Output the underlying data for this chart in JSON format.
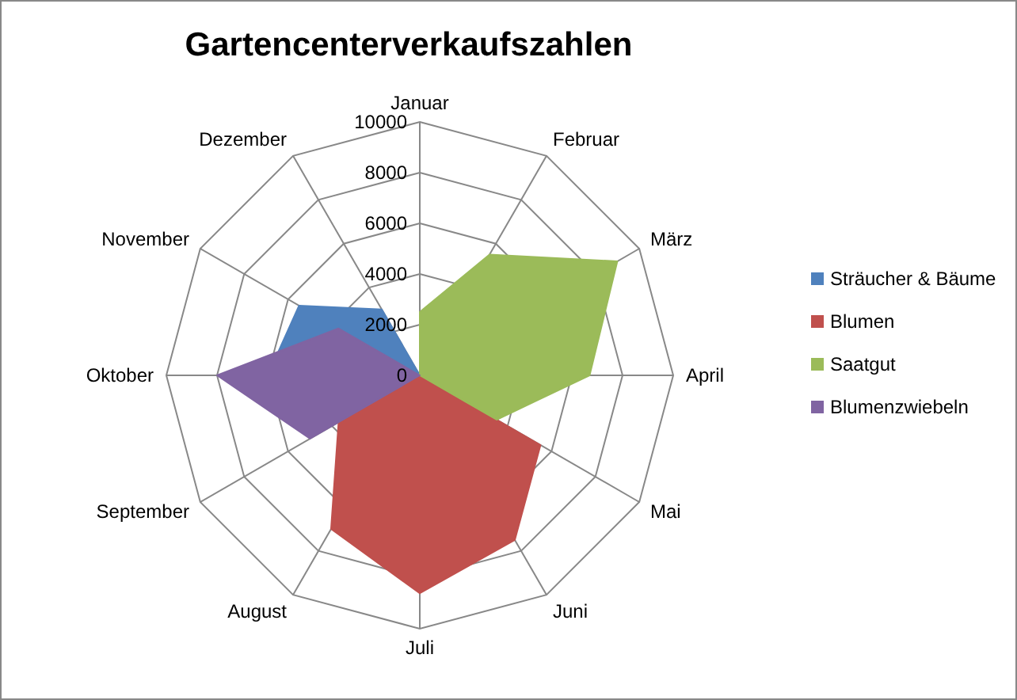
{
  "chart_data": {
    "type": "radar",
    "title": "Gartencenterverkaufszahlen",
    "categories": [
      "Januar",
      "Februar",
      "März",
      "April",
      "Mai",
      "Juni",
      "Juli",
      "August",
      "September",
      "Oktober",
      "November",
      "Dezember"
    ],
    "ylim": [
      0,
      10000
    ],
    "yticks": [
      0,
      2000,
      4000,
      6000,
      8000,
      10000
    ],
    "grid": true,
    "legend": "right",
    "series": [
      {
        "name": "Sträucher & Bäume",
        "color": "#4f81bd",
        "values": [
          0,
          0,
          0,
          0,
          0,
          0,
          0,
          0,
          0,
          6000,
          5500,
          3000
        ]
      },
      {
        "name": "Blumen",
        "color": "#c0504d",
        "values": [
          0,
          0,
          0,
          0,
          5500,
          7500,
          8600,
          7000,
          3700,
          0,
          0,
          0
        ]
      },
      {
        "name": "Saatgut",
        "color": "#9bbb59",
        "values": [
          2500,
          5500,
          9000,
          6700,
          3500,
          0,
          0,
          0,
          0,
          0,
          0,
          0
        ]
      },
      {
        "name": "Blumenzwiebeln",
        "color": "#8064a2",
        "values": [
          0,
          0,
          0,
          0,
          0,
          0,
          0,
          0,
          5000,
          8000,
          3700,
          0
        ]
      }
    ]
  }
}
